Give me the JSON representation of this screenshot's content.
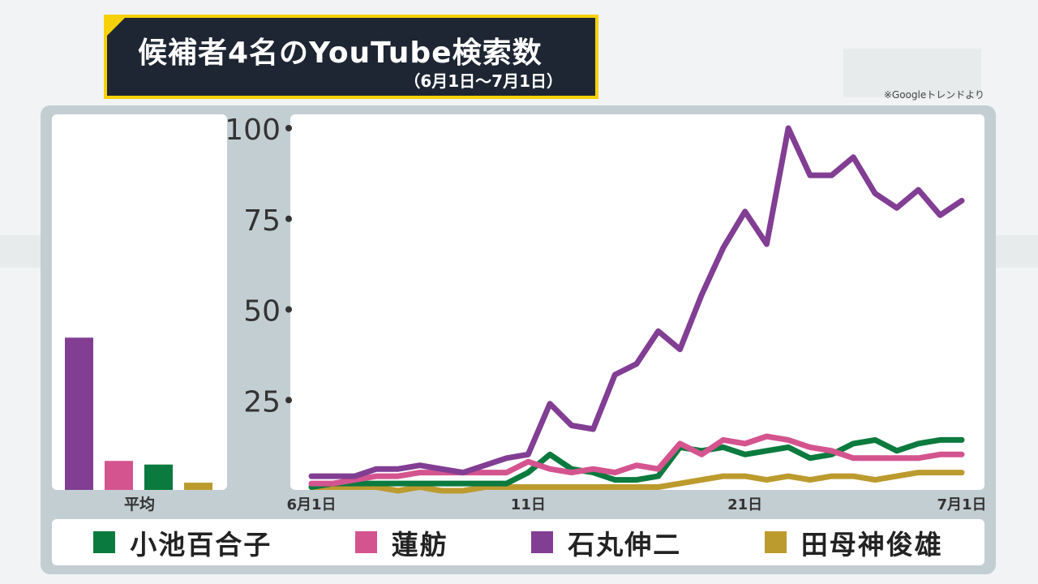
{
  "header": {
    "title": "候補者4名のYouTube検索数",
    "subtitle": "（6月1日〜7月1日）",
    "source": "※Googleトレンドより"
  },
  "average_panel": {
    "label": "平均"
  },
  "colors": {
    "koike": "#0b7a3e",
    "renho": "#d4548f",
    "ishimaru": "#813e93",
    "tamogami": "#bc9b2e"
  },
  "chart_data": {
    "type": "line",
    "title": "候補者4名のYouTube検索数",
    "subtitle": "（6月1日〜7月1日）",
    "source": "※Googleトレンドより",
    "x": [
      1,
      2,
      3,
      4,
      5,
      6,
      7,
      8,
      9,
      10,
      11,
      12,
      13,
      14,
      15,
      16,
      17,
      18,
      19,
      20,
      21,
      22,
      23,
      24,
      25,
      26,
      27,
      28,
      29,
      30,
      31
    ],
    "x_ticks": [
      {
        "x": 1,
        "label": "6月1日"
      },
      {
        "x": 11,
        "label": "11日"
      },
      {
        "x": 21,
        "label": "21日"
      },
      {
        "x": 31,
        "label": "7月1日"
      }
    ],
    "ylim": [
      0,
      100
    ],
    "y_ticks": [
      25,
      50,
      75,
      100
    ],
    "grid": false,
    "legend": "bottom",
    "series": [
      {
        "key": "koike",
        "name": "小池百合子",
        "values": [
          1,
          2,
          2,
          2,
          2,
          2,
          2,
          2,
          2,
          2,
          5,
          10,
          6,
          5,
          3,
          3,
          4,
          12,
          11,
          12,
          10,
          11,
          12,
          9,
          10,
          13,
          14,
          11,
          13,
          14,
          14
        ]
      },
      {
        "key": "renho",
        "name": "蓮舫",
        "values": [
          2,
          2,
          3,
          4,
          4,
          5,
          5,
          5,
          5,
          5,
          8,
          6,
          5,
          6,
          5,
          7,
          6,
          13,
          10,
          14,
          13,
          15,
          14,
          12,
          11,
          9,
          9,
          9,
          9,
          10,
          10
        ]
      },
      {
        "key": "ishimaru",
        "name": "石丸伸二",
        "values": [
          4,
          4,
          4,
          6,
          6,
          7,
          6,
          5,
          7,
          9,
          10,
          24,
          18,
          17,
          32,
          35,
          44,
          39,
          54,
          67,
          77,
          68,
          100,
          87,
          87,
          92,
          82,
          78,
          83,
          76,
          80
        ]
      },
      {
        "key": "tamogami",
        "name": "田母神俊雄",
        "values": [
          1,
          1,
          1,
          1,
          0,
          1,
          0,
          0,
          1,
          1,
          1,
          1,
          1,
          1,
          1,
          1,
          1,
          2,
          3,
          4,
          4,
          3,
          4,
          3,
          4,
          4,
          3,
          4,
          5,
          5,
          5
        ]
      }
    ],
    "averages": [
      {
        "key": "ishimaru",
        "name": "石丸伸二",
        "value": 42
      },
      {
        "key": "renho",
        "name": "蓮舫",
        "value": 8
      },
      {
        "key": "koike",
        "name": "小池百合子",
        "value": 7
      },
      {
        "key": "tamogami",
        "name": "田母神俊雄",
        "value": 2
      }
    ]
  },
  "legend": [
    {
      "key": "koike",
      "label": "小池百合子"
    },
    {
      "key": "renho",
      "label": "蓮舫"
    },
    {
      "key": "ishimaru",
      "label": "石丸伸二"
    },
    {
      "key": "tamogami",
      "label": "田母神俊雄"
    }
  ]
}
